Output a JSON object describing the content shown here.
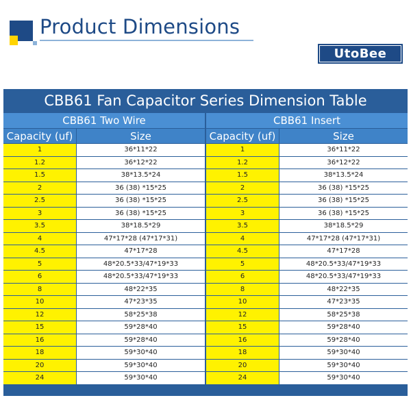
{
  "header": {
    "title": "Product Dimensions",
    "brand": "UtoBee",
    "colors": {
      "navy": "#1e4a86",
      "yellow": "#fff200",
      "blue": "#4a8fd4"
    }
  },
  "table": {
    "title": "CBB61 Fan Capacitor Series Dimension Table",
    "groups": [
      {
        "name": "CBB61 Two Wire",
        "col_capacity": "Capacity (uf)",
        "col_size": "Size"
      },
      {
        "name": "CBB61 Insert",
        "col_capacity": "Capacity (uf)",
        "col_size": "Size"
      }
    ],
    "rows": [
      {
        "capacity": "1",
        "size": "36*11*22"
      },
      {
        "capacity": "1.2",
        "size": "36*12*22"
      },
      {
        "capacity": "1.5",
        "size": "38*13.5*24"
      },
      {
        "capacity": "2",
        "size": "36 (38) *15*25"
      },
      {
        "capacity": "2.5",
        "size": "36 (38) *15*25"
      },
      {
        "capacity": "3",
        "size": "36 (38) *15*25"
      },
      {
        "capacity": "3.5",
        "size": "38*18.5*29"
      },
      {
        "capacity": "4",
        "size": "47*17*28 (47*17*31)"
      },
      {
        "capacity": "4.5",
        "size": "47*17*28"
      },
      {
        "capacity": "5",
        "size": "48*20.5*33/47*19*33"
      },
      {
        "capacity": "6",
        "size": "48*20.5*33/47*19*33"
      },
      {
        "capacity": "8",
        "size": "48*22*35"
      },
      {
        "capacity": "10",
        "size": "47*23*35"
      },
      {
        "capacity": "12",
        "size": "58*25*38"
      },
      {
        "capacity": "15",
        "size": "59*28*40"
      },
      {
        "capacity": "16",
        "size": "59*28*40"
      },
      {
        "capacity": "18",
        "size": "59*30*40"
      },
      {
        "capacity": "20",
        "size": "59*30*40"
      },
      {
        "capacity": "24",
        "size": "59*30*40"
      }
    ]
  }
}
